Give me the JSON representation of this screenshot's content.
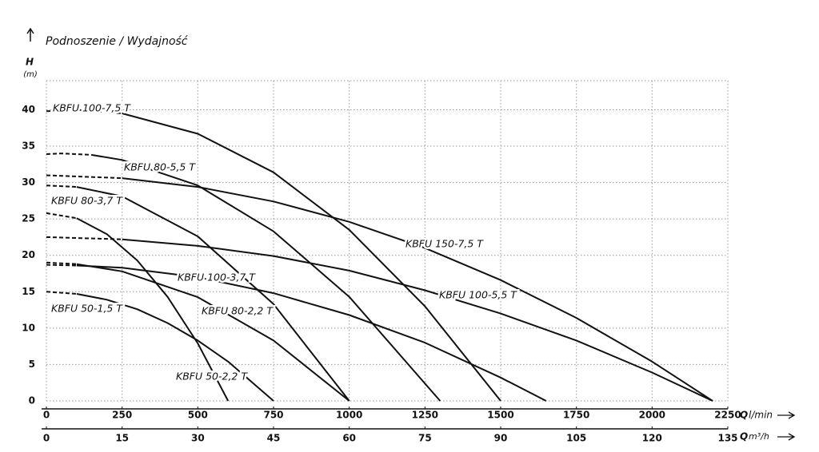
{
  "chart_data": {
    "type": "line",
    "title": "Podnoszenie / Wydajność",
    "y_label": "H",
    "y_unit": "(m)",
    "x_label": "Q",
    "x_unit": "l/min",
    "x2_label": "Q",
    "x2_unit": "m³/h",
    "xlim": [
      0,
      2250
    ],
    "xticks": [
      0,
      250,
      500,
      750,
      1000,
      1250,
      1500,
      1750,
      2000,
      2250
    ],
    "x2lim": [
      0,
      135
    ],
    "x2ticks": [
      0,
      15,
      30,
      45,
      60,
      75,
      90,
      105,
      120,
      135
    ],
    "ylim": [
      0,
      44
    ],
    "yticks": [
      0,
      5,
      10,
      15,
      20,
      25,
      30,
      35,
      40
    ],
    "grid": true,
    "series": [
      {
        "name": "KBFU 100-7,5 T",
        "color": "#111111",
        "dashed_points": 3,
        "x": [
          0,
          100,
          250,
          500,
          750,
          1000,
          1250,
          1500
        ],
        "values": [
          39.8,
          40,
          39.5,
          36.7,
          31.4,
          23.5,
          13.0,
          0
        ]
      },
      {
        "name": "KBFU 80-5,5 T",
        "color": "#111111",
        "dashed_points": 3,
        "x": [
          0,
          50,
          150,
          250,
          500,
          750,
          1000,
          1300
        ],
        "values": [
          33.9,
          34,
          33.8,
          33.1,
          29.6,
          23.3,
          14.3,
          0
        ]
      },
      {
        "name": "KBFU 150-7,5 T",
        "color": "#111111",
        "dashed_points": 2,
        "x": [
          0,
          250,
          500,
          750,
          1000,
          1250,
          1500,
          1750,
          2000,
          2200
        ],
        "values": [
          31,
          30.6,
          29.4,
          27.4,
          24.6,
          21,
          16.6,
          11.4,
          5.4,
          0
        ]
      },
      {
        "name": "KBFU 80-3,7 T",
        "color": "#111111",
        "dashed_points": 2,
        "x": [
          0,
          100,
          250,
          500,
          750,
          1000
        ],
        "values": [
          29.6,
          29.4,
          28.1,
          22.6,
          13.3,
          0
        ]
      },
      {
        "name": "KBFU 100-5,5 T",
        "color": "#111111",
        "dashed_points": 2,
        "x": [
          0,
          250,
          500,
          750,
          1000,
          1250,
          1500,
          1750,
          2000,
          2200
        ],
        "values": [
          22.5,
          22.2,
          21.3,
          19.9,
          17.9,
          15.2,
          12.0,
          8.3,
          3.9,
          0
        ]
      },
      {
        "name": "KBFU 50-2,2 T",
        "color": "#111111",
        "dashed_points": 2,
        "x": [
          0,
          100,
          200,
          300,
          400,
          500,
          600
        ],
        "values": [
          25.8,
          25.1,
          22.9,
          19.3,
          14.3,
          7.9,
          0
        ]
      },
      {
        "name": "KBFU 100-3,7 T",
        "color": "#111111",
        "dashed_points": 2,
        "x": [
          0,
          100,
          250,
          500,
          750,
          1000,
          1250,
          1500,
          1650
        ],
        "values": [
          18.7,
          18.6,
          18.3,
          17.0,
          14.8,
          11.8,
          8.0,
          3.2,
          0
        ]
      },
      {
        "name": "KBFU 80-2,2 T",
        "color": "#111111",
        "dashed_points": 2,
        "x": [
          0,
          100,
          250,
          500,
          750,
          1000
        ],
        "values": [
          19,
          18.8,
          17.8,
          14.25,
          8.3,
          0
        ]
      },
      {
        "name": "KBFU 50-1,5 T",
        "color": "#111111",
        "dashed_points": 2,
        "x": [
          0,
          100,
          200,
          300,
          400,
          500,
          600,
          750
        ],
        "values": [
          15,
          14.7,
          13.9,
          12.6,
          10.7,
          8.3,
          5.4,
          0
        ]
      }
    ]
  }
}
